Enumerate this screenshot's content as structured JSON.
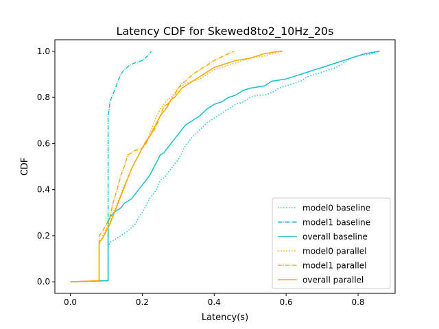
{
  "colors": {
    "baseline": "#17becf",
    "parallel": "#ffa500"
  },
  "chart_data": {
    "type": "line",
    "title": "Latency CDF for Skewed8to2_10Hz_20s",
    "xlabel": "Latency(s)",
    "ylabel": "CDF",
    "xlim": [
      -0.043,
      0.903
    ],
    "ylim": [
      -0.05,
      1.05
    ],
    "xticks": [
      0.0,
      0.2,
      0.4,
      0.6,
      0.8
    ],
    "xtick_labels": [
      "0.0",
      "0.2",
      "0.4",
      "0.6",
      "0.8"
    ],
    "yticks": [
      0.0,
      0.2,
      0.4,
      0.6,
      0.8,
      1.0
    ],
    "ytick_labels": [
      "0.0",
      "0.2",
      "0.4",
      "0.6",
      "0.8",
      "1.0"
    ],
    "grid": false,
    "legend_position": "lower-right",
    "series": [
      {
        "name": "model0 baseline",
        "color": "baseline",
        "dash": "dotted",
        "x": [
          0.0,
          0.105,
          0.105,
          0.11,
          0.12,
          0.14,
          0.16,
          0.18,
          0.19,
          0.2,
          0.21,
          0.22,
          0.24,
          0.25,
          0.26,
          0.27,
          0.28,
          0.29,
          0.3,
          0.31,
          0.32,
          0.33,
          0.34,
          0.36,
          0.38,
          0.4,
          0.42,
          0.44,
          0.46,
          0.48,
          0.5,
          0.52,
          0.54,
          0.56,
          0.58,
          0.6,
          0.62,
          0.64,
          0.66,
          0.68,
          0.7,
          0.72,
          0.74,
          0.76,
          0.78,
          0.8,
          0.82,
          0.84,
          0.86
        ],
        "y": [
          0.0,
          0.005,
          0.15,
          0.17,
          0.18,
          0.2,
          0.22,
          0.25,
          0.28,
          0.3,
          0.33,
          0.36,
          0.4,
          0.44,
          0.45,
          0.47,
          0.49,
          0.51,
          0.53,
          0.56,
          0.59,
          0.61,
          0.63,
          0.66,
          0.69,
          0.71,
          0.73,
          0.75,
          0.77,
          0.78,
          0.8,
          0.81,
          0.81,
          0.82,
          0.84,
          0.85,
          0.86,
          0.87,
          0.89,
          0.9,
          0.91,
          0.92,
          0.93,
          0.95,
          0.97,
          0.98,
          0.985,
          0.99,
          1.0
        ]
      },
      {
        "name": "model1 baseline",
        "color": "baseline",
        "dash": "dashdot",
        "x": [
          0.0,
          0.105,
          0.105,
          0.108,
          0.11,
          0.115,
          0.12,
          0.13,
          0.14,
          0.15,
          0.165,
          0.18,
          0.2,
          0.215,
          0.225
        ],
        "y": [
          0.0,
          0.005,
          0.72,
          0.75,
          0.78,
          0.8,
          0.82,
          0.86,
          0.9,
          0.92,
          0.94,
          0.95,
          0.96,
          0.98,
          1.0
        ]
      },
      {
        "name": "overall baseline",
        "color": "baseline",
        "dash": "solid",
        "x": [
          0.0,
          0.105,
          0.105,
          0.11,
          0.12,
          0.13,
          0.14,
          0.15,
          0.16,
          0.17,
          0.18,
          0.19,
          0.2,
          0.21,
          0.22,
          0.23,
          0.24,
          0.25,
          0.26,
          0.27,
          0.28,
          0.29,
          0.3,
          0.31,
          0.32,
          0.34,
          0.36,
          0.38,
          0.4,
          0.42,
          0.44,
          0.46,
          0.48,
          0.5,
          0.52,
          0.54,
          0.56,
          0.58,
          0.6,
          0.62,
          0.64,
          0.66,
          0.68,
          0.7,
          0.72,
          0.74,
          0.76,
          0.78,
          0.8,
          0.82,
          0.84,
          0.86
        ],
        "y": [
          0.0,
          0.005,
          0.26,
          0.28,
          0.3,
          0.31,
          0.32,
          0.34,
          0.35,
          0.36,
          0.38,
          0.4,
          0.42,
          0.44,
          0.46,
          0.49,
          0.52,
          0.55,
          0.56,
          0.58,
          0.6,
          0.62,
          0.64,
          0.66,
          0.68,
          0.7,
          0.72,
          0.75,
          0.77,
          0.78,
          0.8,
          0.81,
          0.83,
          0.84,
          0.845,
          0.85,
          0.87,
          0.875,
          0.88,
          0.89,
          0.9,
          0.91,
          0.92,
          0.93,
          0.94,
          0.95,
          0.96,
          0.97,
          0.98,
          0.99,
          0.995,
          1.0
        ]
      },
      {
        "name": "model0 parallel",
        "color": "parallel",
        "dash": "dotted",
        "x": [
          0.0,
          0.08,
          0.08,
          0.09,
          0.1,
          0.11,
          0.12,
          0.13,
          0.14,
          0.15,
          0.16,
          0.17,
          0.18,
          0.19,
          0.2,
          0.21,
          0.22,
          0.23,
          0.24,
          0.25,
          0.26,
          0.27,
          0.28,
          0.29,
          0.3,
          0.31,
          0.32,
          0.34,
          0.36,
          0.38,
          0.4,
          0.42,
          0.44,
          0.46,
          0.48,
          0.5,
          0.52,
          0.54,
          0.56,
          0.58,
          0.59
        ],
        "y": [
          0.0,
          0.005,
          0.16,
          0.2,
          0.23,
          0.26,
          0.3,
          0.34,
          0.38,
          0.42,
          0.45,
          0.49,
          0.52,
          0.55,
          0.58,
          0.6,
          0.64,
          0.68,
          0.72,
          0.75,
          0.77,
          0.79,
          0.8,
          0.82,
          0.84,
          0.85,
          0.86,
          0.87,
          0.88,
          0.9,
          0.92,
          0.93,
          0.94,
          0.95,
          0.96,
          0.97,
          0.975,
          0.98,
          0.99,
          0.995,
          1.0
        ]
      },
      {
        "name": "model1 parallel",
        "color": "parallel",
        "dash": "dashdot",
        "x": [
          0.0,
          0.08,
          0.08,
          0.09,
          0.1,
          0.11,
          0.12,
          0.13,
          0.14,
          0.15,
          0.16,
          0.18,
          0.2,
          0.21,
          0.22,
          0.23,
          0.24,
          0.25,
          0.26,
          0.27,
          0.28,
          0.29,
          0.3,
          0.31,
          0.32,
          0.34,
          0.36,
          0.38,
          0.4,
          0.42,
          0.44,
          0.455
        ],
        "y": [
          0.0,
          0.005,
          0.2,
          0.22,
          0.25,
          0.28,
          0.35,
          0.4,
          0.46,
          0.5,
          0.55,
          0.57,
          0.58,
          0.6,
          0.63,
          0.65,
          0.68,
          0.72,
          0.76,
          0.77,
          0.79,
          0.81,
          0.84,
          0.86,
          0.87,
          0.9,
          0.92,
          0.94,
          0.96,
          0.975,
          0.99,
          1.0
        ]
      },
      {
        "name": "overall parallel",
        "color": "parallel",
        "dash": "solid",
        "x": [
          0.0,
          0.08,
          0.08,
          0.09,
          0.1,
          0.11,
          0.12,
          0.13,
          0.14,
          0.15,
          0.16,
          0.17,
          0.18,
          0.19,
          0.2,
          0.21,
          0.22,
          0.23,
          0.24,
          0.25,
          0.26,
          0.27,
          0.28,
          0.29,
          0.3,
          0.31,
          0.32,
          0.34,
          0.36,
          0.38,
          0.4,
          0.42,
          0.44,
          0.46,
          0.48,
          0.5,
          0.52,
          0.54,
          0.56,
          0.58,
          0.59
        ],
        "y": [
          0.0,
          0.005,
          0.17,
          0.19,
          0.22,
          0.25,
          0.29,
          0.33,
          0.37,
          0.41,
          0.45,
          0.49,
          0.52,
          0.55,
          0.58,
          0.61,
          0.63,
          0.66,
          0.69,
          0.72,
          0.74,
          0.76,
          0.79,
          0.8,
          0.82,
          0.84,
          0.85,
          0.87,
          0.89,
          0.91,
          0.93,
          0.94,
          0.95,
          0.96,
          0.965,
          0.97,
          0.98,
          0.99,
          0.995,
          1.0,
          1.0
        ]
      }
    ]
  }
}
